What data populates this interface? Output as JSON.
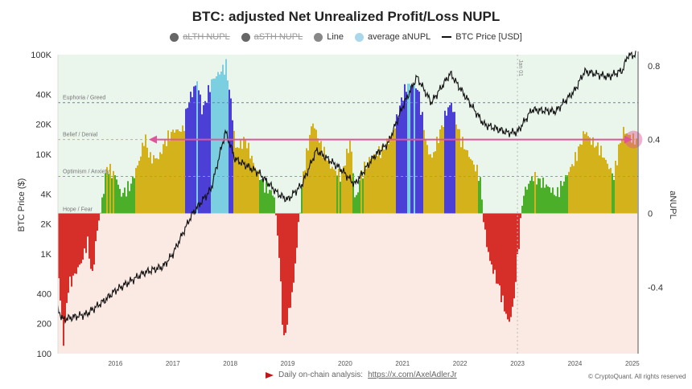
{
  "chart_data": {
    "type": "bar",
    "title": "BTC: adjusted Net Unrealized Profit/Loss NUPL",
    "ylabel_left": "BTC Price ($)",
    "ylabel_right": "aNUPL",
    "left_axis": {
      "scale": "log",
      "ylim": [
        100,
        100000
      ],
      "ticks": [
        "100",
        "200",
        "400",
        "1K",
        "2K",
        "4K",
        "10K",
        "20K",
        "40K",
        "100K"
      ],
      "tick_values": [
        100,
        200,
        400,
        1000,
        2000,
        4000,
        10000,
        20000,
        40000,
        100000
      ]
    },
    "right_axis": {
      "ylim": [
        -0.76,
        0.86
      ],
      "ticks": [
        "-0.4",
        "0",
        "0.4",
        "0.8"
      ],
      "tick_values": [
        -0.4,
        0,
        0.4,
        0.8
      ]
    },
    "x_ticks": [
      "2016",
      "2017",
      "2018",
      "2019",
      "2020",
      "2021",
      "2022",
      "2023",
      "2024",
      "2025"
    ],
    "xlim": [
      "2015-01",
      "2025-02"
    ],
    "legend": [
      {
        "label": "aLTH NUPL",
        "color": "#666666",
        "hidden": true
      },
      {
        "label": "aSTH NUPL",
        "color": "#666666",
        "hidden": true
      },
      {
        "label": "Line",
        "color": "#888888",
        "hidden": false
      },
      {
        "label": "average aNUPL",
        "color": "#a8d8ea",
        "hidden": false
      },
      {
        "label": "BTC Price [USD]",
        "color": "#111111",
        "hidden": false
      }
    ],
    "legend_position": "top",
    "zones": [
      {
        "label": "Euphoria / Greed",
        "value": 0.6,
        "color": "#6b7fb8"
      },
      {
        "label": "Belief / Denial",
        "value": 0.4,
        "color": "#b8c24a"
      },
      {
        "label": "Optimism / Anxiety",
        "value": 0.2,
        "color": "#6bbf4a"
      },
      {
        "label": "Hope / Fear",
        "value": 0,
        "color": "#999999"
      }
    ],
    "zone_colors": {
      "negative": "#d62f2a",
      "hope": "#4caf2a",
      "optimism": "#d4b21c",
      "belief": "#4b3fd6",
      "euphoria": "#7ccfe0"
    },
    "annotation": {
      "vline_label": "Jan 01",
      "vline_date": "2023-01",
      "arrow_value": 0.4,
      "arrow_from": "2016-09",
      "arrow_to": "2024-12",
      "marker_color": "#e0549a"
    },
    "anupl": [
      [
        "2015-01",
        -0.35
      ],
      [
        "2015-02",
        -0.7
      ],
      [
        "2015-03",
        -0.4
      ],
      [
        "2015-06",
        -0.25
      ],
      [
        "2015-07",
        -0.15
      ],
      [
        "2015-08",
        -0.35
      ],
      [
        "2015-09",
        -0.1
      ],
      [
        "2015-10",
        0.05
      ],
      [
        "2015-11",
        0.25
      ],
      [
        "2016-01",
        0.2
      ],
      [
        "2016-02",
        0.1
      ],
      [
        "2016-04",
        0.15
      ],
      [
        "2016-06",
        0.3
      ],
      [
        "2016-07",
        0.42
      ],
      [
        "2016-08",
        0.3
      ],
      [
        "2016-10",
        0.3
      ],
      [
        "2016-11",
        0.38
      ],
      [
        "2017-01",
        0.45
      ],
      [
        "2017-03",
        0.45
      ],
      [
        "2017-04",
        0.6
      ],
      [
        "2017-06",
        0.72
      ],
      [
        "2017-07",
        0.55
      ],
      [
        "2017-09",
        0.72
      ],
      [
        "2017-12",
        0.8
      ],
      [
        "2018-01",
        0.6
      ],
      [
        "2018-02",
        0.35
      ],
      [
        "2018-04",
        0.4
      ],
      [
        "2018-06",
        0.25
      ],
      [
        "2018-08",
        0.15
      ],
      [
        "2018-10",
        0.1
      ],
      [
        "2018-11",
        -0.2
      ],
      [
        "2018-12",
        -0.7
      ],
      [
        "2019-02",
        -0.4
      ],
      [
        "2019-03",
        -0.1
      ],
      [
        "2019-04",
        0.2
      ],
      [
        "2019-06",
        0.5
      ],
      [
        "2019-08",
        0.35
      ],
      [
        "2019-10",
        0.25
      ],
      [
        "2019-12",
        0.2
      ],
      [
        "2020-02",
        0.4
      ],
      [
        "2020-03",
        0.05
      ],
      [
        "2020-04",
        0.2
      ],
      [
        "2020-06",
        0.3
      ],
      [
        "2020-09",
        0.35
      ],
      [
        "2020-11",
        0.45
      ],
      [
        "2021-01",
        0.65
      ],
      [
        "2021-02",
        0.7
      ],
      [
        "2021-04",
        0.68
      ],
      [
        "2021-06",
        0.35
      ],
      [
        "2021-07",
        0.3
      ],
      [
        "2021-10",
        0.55
      ],
      [
        "2021-11",
        0.6
      ],
      [
        "2022-01",
        0.4
      ],
      [
        "2022-03",
        0.3
      ],
      [
        "2022-05",
        0.2
      ],
      [
        "2022-06",
        -0.1
      ],
      [
        "2022-07",
        -0.25
      ],
      [
        "2022-09",
        -0.4
      ],
      [
        "2022-11",
        -0.6
      ],
      [
        "2022-12",
        -0.5
      ],
      [
        "2023-01",
        -0.2
      ],
      [
        "2023-02",
        0.1
      ],
      [
        "2023-04",
        0.2
      ],
      [
        "2023-07",
        0.15
      ],
      [
        "2023-09",
        0.1
      ],
      [
        "2023-11",
        0.2
      ],
      [
        "2024-01",
        0.3
      ],
      [
        "2024-03",
        0.45
      ],
      [
        "2024-04",
        0.4
      ],
      [
        "2024-06",
        0.35
      ],
      [
        "2024-08",
        0.25
      ],
      [
        "2024-09",
        0.2
      ],
      [
        "2024-10",
        0.35
      ],
      [
        "2024-11",
        0.45
      ],
      [
        "2025-01",
        0.4
      ]
    ],
    "btc_price": [
      [
        "2015-01",
        280
      ],
      [
        "2015-02",
        220
      ],
      [
        "2015-07",
        250
      ],
      [
        "2015-11",
        350
      ],
      [
        "2016-01",
        430
      ],
      [
        "2016-07",
        650
      ],
      [
        "2016-11",
        750
      ],
      [
        "2017-01",
        1000
      ],
      [
        "2017-05",
        2500
      ],
      [
        "2017-09",
        4500
      ],
      [
        "2017-12",
        17000
      ],
      [
        "2018-02",
        9000
      ],
      [
        "2018-07",
        6500
      ],
      [
        "2018-11",
        4000
      ],
      [
        "2019-01",
        3500
      ],
      [
        "2019-04",
        5000
      ],
      [
        "2019-07",
        11000
      ],
      [
        "2019-12",
        7200
      ],
      [
        "2020-03",
        5000
      ],
      [
        "2020-07",
        9500
      ],
      [
        "2020-10",
        13000
      ],
      [
        "2021-01",
        30000
      ],
      [
        "2021-04",
        60000
      ],
      [
        "2021-07",
        33000
      ],
      [
        "2021-11",
        65000
      ],
      [
        "2022-01",
        46000
      ],
      [
        "2022-06",
        20000
      ],
      [
        "2022-11",
        16500
      ],
      [
        "2023-01",
        16800
      ],
      [
        "2023-04",
        28000
      ],
      [
        "2023-09",
        27000
      ],
      [
        "2024-01",
        44000
      ],
      [
        "2024-03",
        68000
      ],
      [
        "2024-08",
        60000
      ],
      [
        "2024-11",
        70000
      ],
      [
        "2024-12",
        98000
      ],
      [
        "2025-02",
        100000
      ]
    ]
  },
  "footer": {
    "text": "Daily on-chain analysis:",
    "link": "https://x.com/AxelAdlerJr",
    "copyright": "© CryptoQuant. All rights reserved"
  }
}
